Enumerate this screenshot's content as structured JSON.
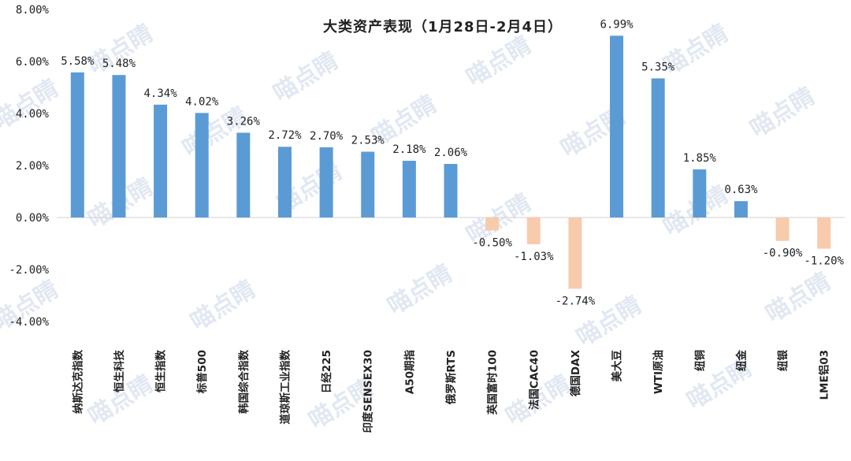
{
  "chart_data": {
    "type": "bar",
    "title": "大类资产表现（1月28日-2月4日）",
    "categories": [
      "纳斯达克指数",
      "恒生科技",
      "恒生指数",
      "标普500",
      "韩国综合指数",
      "道琼斯工业指数",
      "日经225",
      "印度SENSEX30",
      "A50期指",
      "俄罗斯RTS",
      "英国富时100",
      "法国CAC40",
      "德国DAX",
      "美大豆",
      "WTI原油",
      "纽铜",
      "纽金",
      "纽银",
      "LME铝03"
    ],
    "values": [
      5.58,
      5.48,
      4.34,
      4.02,
      3.26,
      2.72,
      2.7,
      2.53,
      2.18,
      2.06,
      -0.5,
      -1.03,
      -2.74,
      6.99,
      5.35,
      1.85,
      0.63,
      -0.9,
      -1.2
    ],
    "value_labels": [
      "5.58%",
      "5.48%",
      "4.34%",
      "4.02%",
      "3.26%",
      "2.72%",
      "2.70%",
      "2.53%",
      "2.18%",
      "2.06%",
      "-0.50%",
      "-1.03%",
      "-2.74%",
      "6.99%",
      "5.35%",
      "1.85%",
      "0.63%",
      "-0.90%",
      "-1.20%"
    ],
    "ylim": [
      -4,
      8
    ],
    "yticks": [
      -4,
      -2,
      0,
      2,
      4,
      6,
      8
    ],
    "ytick_labels": [
      "-4.00%",
      "-2.00%",
      "0.00%",
      "2.00%",
      "4.00%",
      "6.00%",
      "8.00%"
    ],
    "xlabel": "",
    "ylabel": "",
    "grid": false,
    "legend": "none",
    "colors": {
      "positive": "#5b9bd5",
      "negative": "#f8cbad",
      "axis": "#d0d0d0"
    }
  },
  "watermark": "喵点睛"
}
